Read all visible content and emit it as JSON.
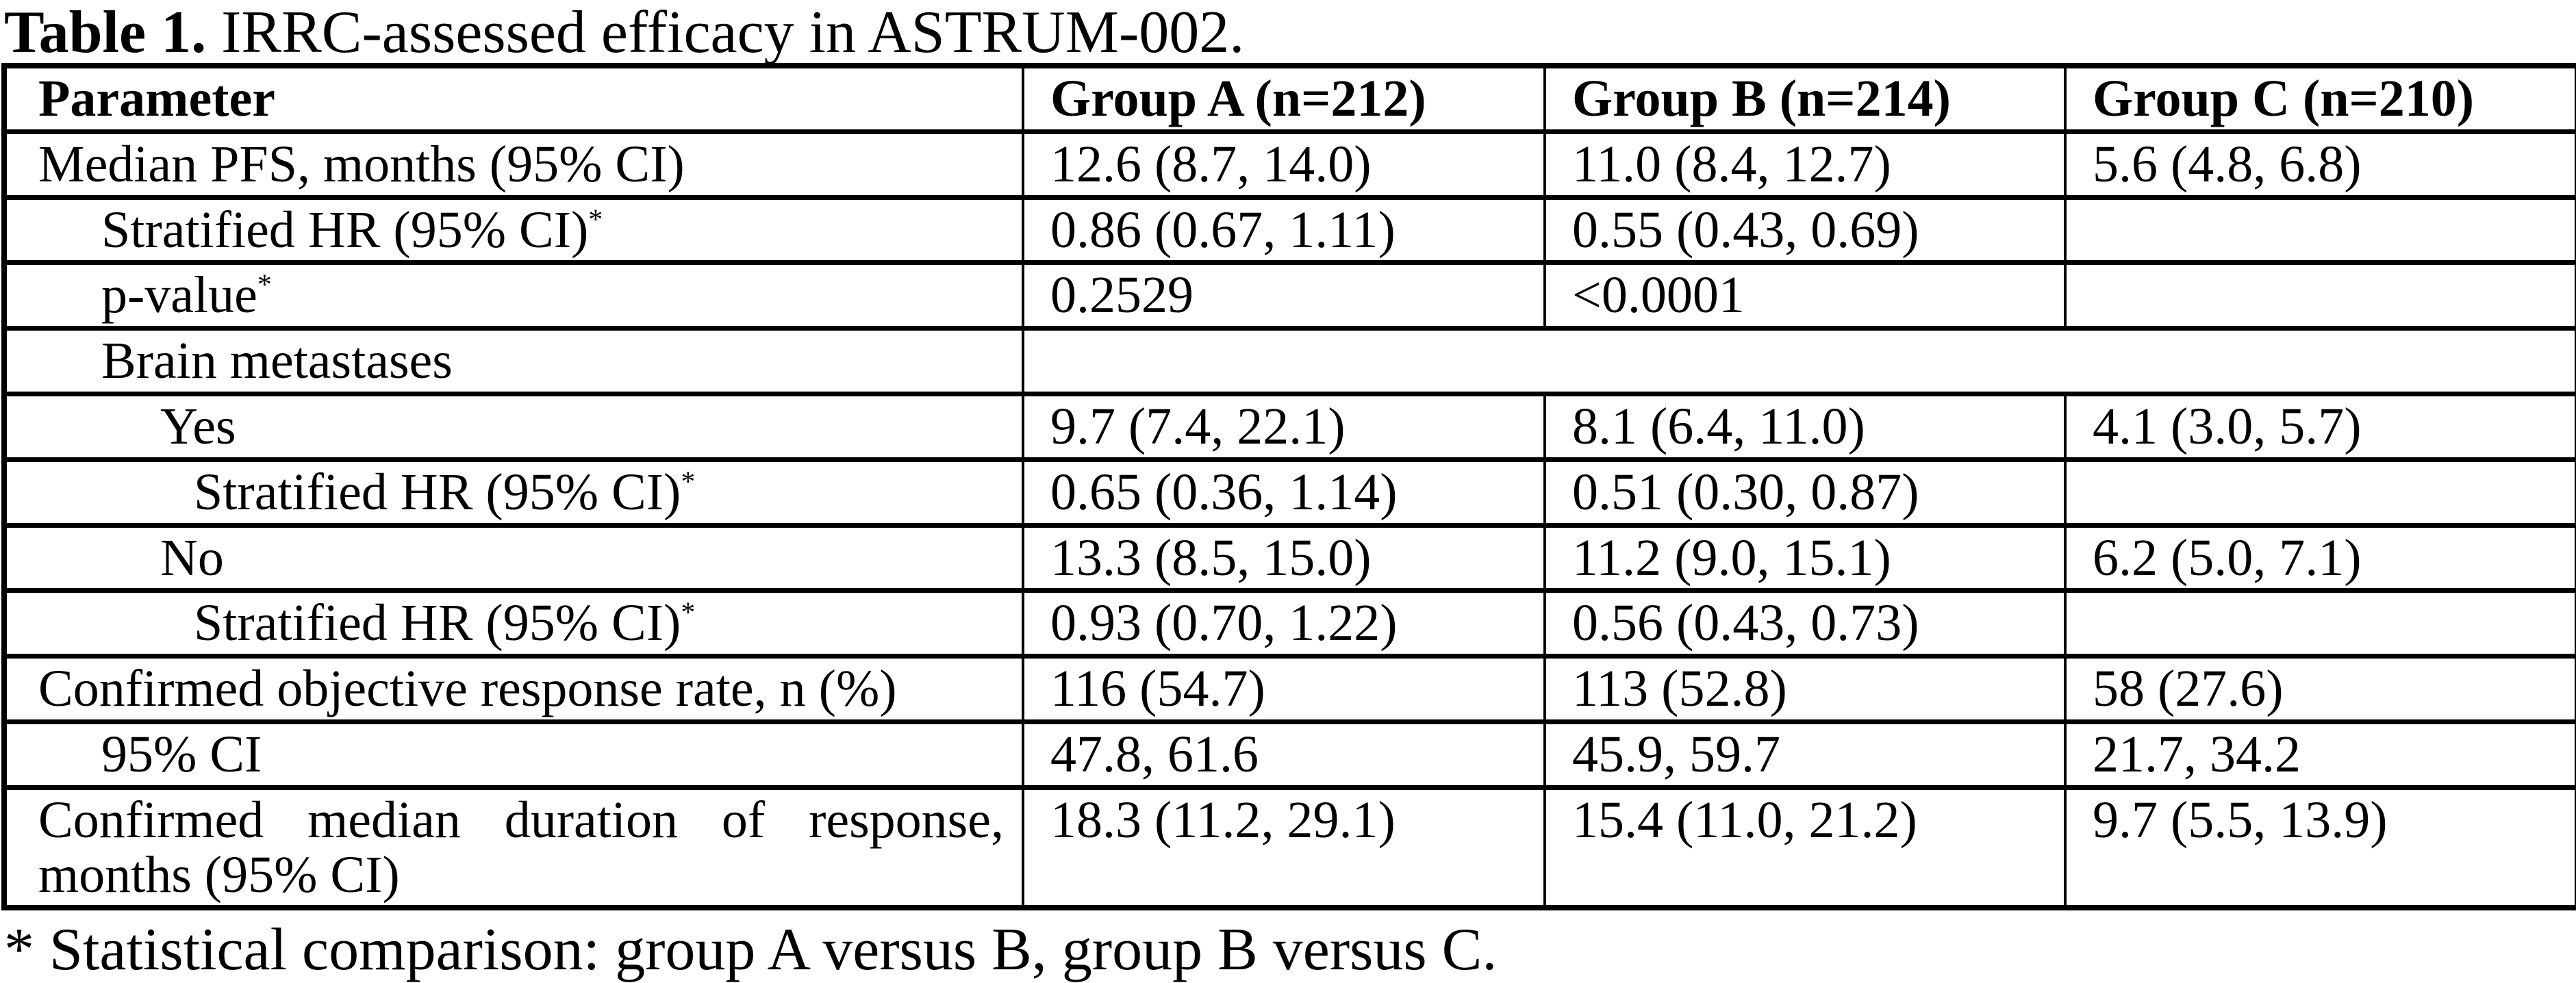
{
  "colors": {
    "text": "#000000",
    "background": "#ffffff",
    "border": "#000000"
  },
  "caption": {
    "bold": "Table 1.",
    "rest": " IRRC-assessed efficacy in ASTRUM-002."
  },
  "table": {
    "header": [
      "Parameter",
      "Group A (n=212)",
      "Group B (n=214)",
      "Group C (n=210)"
    ],
    "rows": [
      {
        "param": "Median PFS, months (95% CI)",
        "indent": 0,
        "values": [
          "12.6 (8.7, 14.0)",
          "11.0 (8.4, 12.7)",
          "5.6 (4.8, 6.8)"
        ]
      },
      {
        "param": "Stratified HR (95% CI)",
        "sup": "*",
        "indent": 1,
        "values": [
          "0.86 (0.67, 1.11)",
          "0.55 (0.43, 0.69)",
          ""
        ]
      },
      {
        "param": "p-value",
        "sup": "*",
        "indent": 1,
        "values": [
          "0.2529",
          "<0.0001",
          ""
        ]
      },
      {
        "param": "Brain metastases",
        "indent": 1,
        "merged": true,
        "values": [
          "",
          "",
          ""
        ]
      },
      {
        "param": "Yes",
        "indent": 2,
        "values": [
          "9.7 (7.4, 22.1)",
          "8.1 (6.4, 11.0)",
          "4.1 (3.0, 5.7)"
        ]
      },
      {
        "param": "Stratified HR (95% CI)",
        "sup": "*",
        "indent": 3,
        "values": [
          "0.65 (0.36, 1.14)",
          "0.51 (0.30, 0.87)",
          ""
        ]
      },
      {
        "param": "No",
        "indent": 2,
        "values": [
          "13.3 (8.5, 15.0)",
          "11.2 (9.0, 15.1)",
          "6.2 (5.0, 7.1)"
        ]
      },
      {
        "param": "Stratified HR (95% CI)",
        "sup": "*",
        "indent": 3,
        "values": [
          "0.93 (0.70, 1.22)",
          "0.56 (0.43, 0.73)",
          ""
        ]
      },
      {
        "param": "Confirmed objective response rate, n (%)",
        "indent": 0,
        "values": [
          "116 (54.7)",
          "113 (52.8)",
          "58 (27.6)"
        ]
      },
      {
        "param": "95% CI",
        "indent": 1,
        "values": [
          "47.8, 61.6",
          "45.9, 59.7",
          "21.7, 34.2"
        ]
      },
      {
        "param_lines": [
          "Confirmed median duration of response,",
          "months (95% CI)"
        ],
        "indent": 0,
        "values": [
          "18.3 (11.2, 29.1)",
          "15.4 (11.0, 21.2)",
          "9.7 (5.5, 13.9)"
        ]
      }
    ]
  },
  "footnote": "* Statistical comparison: group A versus B, group B versus C."
}
